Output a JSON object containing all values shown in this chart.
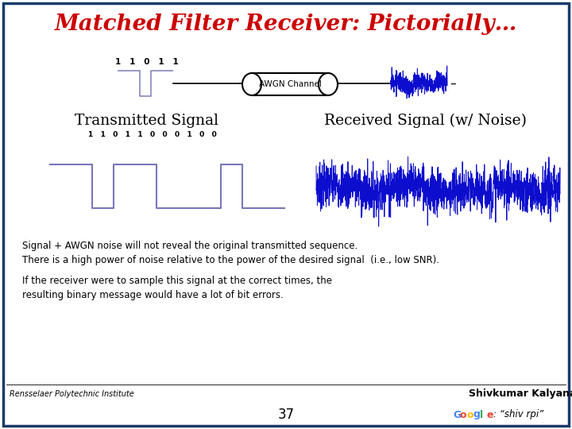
{
  "title": "Matched Filter Receiver: Pictorially…",
  "title_color": "#CC0000",
  "title_fontsize": 20,
  "bg_color": "#FFFFFF",
  "border_color": "#1A3A6B",
  "transmitted_label": "Transmitted Signal",
  "received_label": "Received Signal (w/ Noise)",
  "awgn_label": "AWGN Channel",
  "bits_top": "1   1   0   1   1",
  "bits_bottom": "1   1   0   1   1   0   0   0   1   0   0",
  "text1": "Signal + AWGN noise will not reveal the original transmitted sequence.\nThere is a high power of noise relative to the power of the desired signal  (i.e., low SNR).",
  "text2": "If the receiver were to sample this signal at the correct times, the\nresulting binary message would have a lot of bit errors.",
  "footer_left": "Rensselaer Polytechnic Institute",
  "footer_right": "Shivkumar Kalyanaraman",
  "footer_page": "37",
  "google_text": "Google",
  "shiv_rpi_text": ": “shiv rpi”",
  "signal_color": "#0000CC",
  "wave_color": "#8888CC"
}
